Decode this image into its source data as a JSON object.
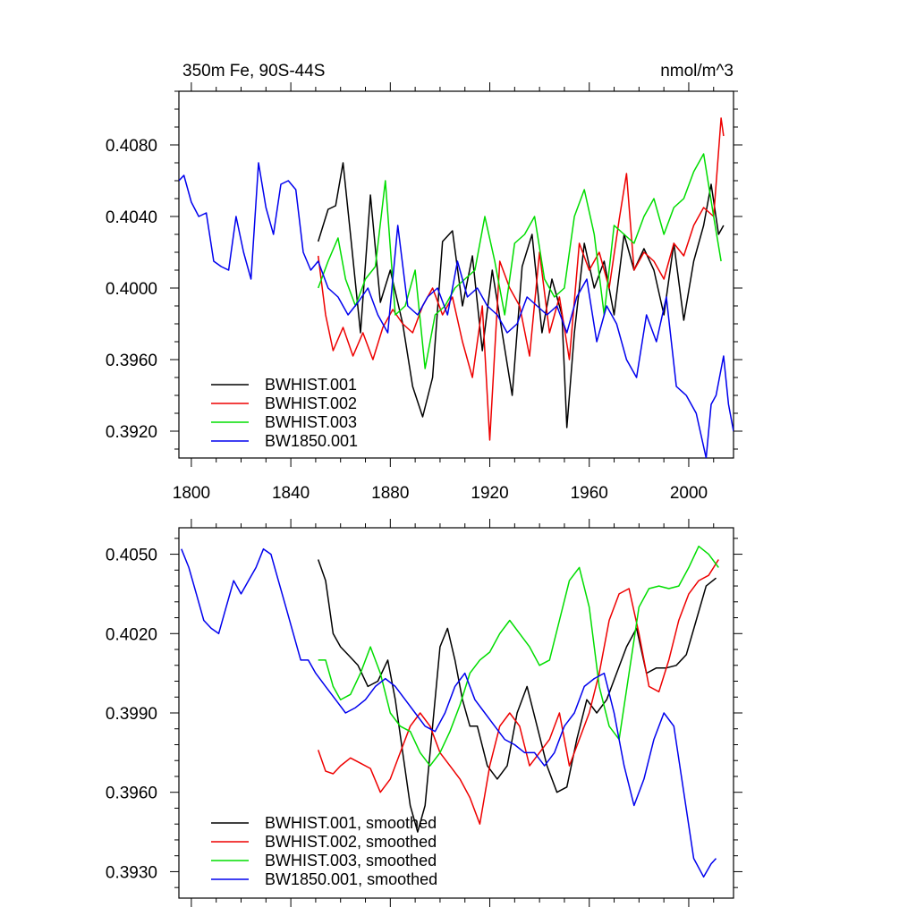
{
  "chart_data": [
    {
      "type": "line",
      "title_left": "350m Fe, 90S-44S",
      "title_right": "nmol/m^3",
      "xlim": [
        1795,
        2018
      ],
      "ylim": [
        0.3905,
        0.411
      ],
      "x_ticks": [
        1800,
        1840,
        1880,
        1920,
        1960,
        2000
      ],
      "x_tick_labels": [
        "1800",
        "1840",
        "1880",
        "1920",
        "1960",
        "2000"
      ],
      "y_ticks": [
        0.392,
        0.396,
        0.4,
        0.404,
        0.408
      ],
      "y_tick_labels": [
        "0.3920",
        "0.3960",
        "0.4000",
        "0.4040",
        "0.4080"
      ],
      "legend_position": "bottom-left",
      "series": [
        {
          "name": "BWHIST.001",
          "color": "#000000",
          "x": [
            1851,
            1855,
            1858,
            1861,
            1864,
            1868,
            1872,
            1876,
            1880,
            1885,
            1889,
            1893,
            1897,
            1901,
            1905,
            1909,
            1913,
            1917,
            1921,
            1925,
            1929,
            1933,
            1937,
            1941,
            1945,
            1949,
            1951,
            1954,
            1958,
            1962,
            1966,
            1970,
            1974,
            1978,
            1982,
            1986,
            1990,
            1994,
            1998,
            2002,
            2006,
            2009,
            2012,
            2014
          ],
          "y": [
            0.4026,
            0.4044,
            0.4046,
            0.407,
            0.403,
            0.3975,
            0.4052,
            0.3992,
            0.401,
            0.398,
            0.3945,
            0.3928,
            0.395,
            0.4026,
            0.4032,
            0.399,
            0.4018,
            0.3965,
            0.401,
            0.3975,
            0.394,
            0.4012,
            0.403,
            0.3975,
            0.4005,
            0.3985,
            0.3922,
            0.3975,
            0.4025,
            0.4,
            0.4015,
            0.3985,
            0.403,
            0.401,
            0.4022,
            0.401,
            0.3985,
            0.4025,
            0.3982,
            0.4015,
            0.4035,
            0.4058,
            0.403,
            0.4035
          ]
        },
        {
          "name": "BWHIST.002",
          "color": "#ee0000",
          "x": [
            1851,
            1854,
            1857,
            1861,
            1865,
            1869,
            1873,
            1877,
            1881,
            1885,
            1889,
            1893,
            1897,
            1901,
            1905,
            1909,
            1913,
            1917,
            1920,
            1924,
            1928,
            1932,
            1936,
            1940,
            1944,
            1948,
            1952,
            1956,
            1960,
            1964,
            1968,
            1972,
            1975,
            1978,
            1982,
            1986,
            1990,
            1994,
            1998,
            2002,
            2006,
            2010,
            2013,
            2014
          ],
          "y": [
            0.4018,
            0.3985,
            0.3965,
            0.3978,
            0.3962,
            0.3975,
            0.396,
            0.3978,
            0.3988,
            0.398,
            0.3975,
            0.399,
            0.4,
            0.3985,
            0.3995,
            0.397,
            0.395,
            0.399,
            0.3915,
            0.4015,
            0.4,
            0.399,
            0.3962,
            0.402,
            0.3975,
            0.3995,
            0.396,
            0.4025,
            0.401,
            0.402,
            0.4,
            0.4038,
            0.4064,
            0.401,
            0.402,
            0.4015,
            0.4005,
            0.4025,
            0.4018,
            0.4035,
            0.4045,
            0.404,
            0.4095,
            0.4085
          ]
        },
        {
          "name": "BWHIST.003",
          "color": "#00dd00",
          "x": [
            1851,
            1855,
            1859,
            1862,
            1866,
            1870,
            1874,
            1878,
            1882,
            1886,
            1890,
            1894,
            1898,
            1902,
            1906,
            1910,
            1914,
            1918,
            1922,
            1926,
            1930,
            1934,
            1938,
            1942,
            1946,
            1950,
            1954,
            1958,
            1962,
            1966,
            1970,
            1974,
            1978,
            1982,
            1986,
            1990,
            1994,
            1998,
            2002,
            2006,
            2010,
            2013
          ],
          "y": [
            0.4,
            0.4015,
            0.4028,
            0.4005,
            0.399,
            0.4005,
            0.4012,
            0.406,
            0.3985,
            0.399,
            0.401,
            0.3955,
            0.3985,
            0.399,
            0.4,
            0.4005,
            0.401,
            0.404,
            0.4015,
            0.3985,
            0.4025,
            0.403,
            0.404,
            0.4005,
            0.3995,
            0.4,
            0.404,
            0.4055,
            0.403,
            0.3985,
            0.4035,
            0.403,
            0.4025,
            0.404,
            0.405,
            0.403,
            0.4045,
            0.405,
            0.4065,
            0.4075,
            0.404,
            0.4015
          ]
        },
        {
          "name": "BW1850.001",
          "color": "#0000ee",
          "x": [
            1795,
            1797,
            1800,
            1803,
            1806,
            1809,
            1812,
            1815,
            1818,
            1821,
            1824,
            1827,
            1830,
            1833,
            1836,
            1839,
            1842,
            1845,
            1848,
            1851,
            1855,
            1859,
            1863,
            1867,
            1871,
            1875,
            1879,
            1883,
            1887,
            1891,
            1895,
            1899,
            1903,
            1907,
            1911,
            1915,
            1919,
            1923,
            1927,
            1931,
            1935,
            1939,
            1943,
            1947,
            1951,
            1955,
            1959,
            1963,
            1967,
            1971,
            1975,
            1979,
            1983,
            1987,
            1991,
            1995,
            1999,
            2003,
            2007,
            2009,
            2011,
            2014,
            2016,
            2018
          ],
          "y": [
            0.406,
            0.4063,
            0.4048,
            0.404,
            0.4042,
            0.4015,
            0.4012,
            0.401,
            0.404,
            0.402,
            0.4005,
            0.407,
            0.4045,
            0.403,
            0.4058,
            0.406,
            0.4055,
            0.402,
            0.401,
            0.4015,
            0.4,
            0.3995,
            0.3985,
            0.3992,
            0.4,
            0.3985,
            0.3975,
            0.4035,
            0.399,
            0.3985,
            0.3995,
            0.4,
            0.3985,
            0.4015,
            0.3995,
            0.4,
            0.399,
            0.3985,
            0.3975,
            0.398,
            0.3995,
            0.399,
            0.3985,
            0.399,
            0.3975,
            0.3995,
            0.4005,
            0.397,
            0.399,
            0.398,
            0.396,
            0.395,
            0.3985,
            0.397,
            0.3995,
            0.3945,
            0.394,
            0.393,
            0.3905,
            0.3935,
            0.394,
            0.3962,
            0.3935,
            0.392
          ]
        }
      ]
    },
    {
      "type": "line",
      "xlim": [
        1795,
        2018
      ],
      "ylim": [
        0.392,
        0.406
      ],
      "x_ticks": [
        1800,
        1840,
        1880,
        1920,
        1960,
        2000
      ],
      "y_ticks": [
        0.393,
        0.396,
        0.399,
        0.402,
        0.405
      ],
      "y_tick_labels": [
        "0.3930",
        "0.3960",
        "0.3990",
        "0.4020",
        "0.4050"
      ],
      "legend_position": "bottom-left",
      "series": [
        {
          "name": "BWHIST.001, smoothed",
          "color": "#000000",
          "x": [
            1851,
            1854,
            1857,
            1860,
            1863,
            1867,
            1871,
            1875,
            1879,
            1882,
            1885,
            1888,
            1891,
            1894,
            1897,
            1900,
            1903,
            1906,
            1909,
            1912,
            1915,
            1919,
            1923,
            1927,
            1931,
            1935,
            1939,
            1943,
            1947,
            1951,
            1955,
            1959,
            1963,
            1967,
            1971,
            1975,
            1979,
            1983,
            1987,
            1991,
            1995,
            1999,
            2003,
            2007,
            2011
          ],
          "y": [
            0.4048,
            0.404,
            0.402,
            0.4015,
            0.4012,
            0.4008,
            0.4,
            0.4002,
            0.401,
            0.3995,
            0.3975,
            0.3955,
            0.3945,
            0.3955,
            0.3985,
            0.4015,
            0.4022,
            0.401,
            0.3995,
            0.3985,
            0.3985,
            0.397,
            0.3965,
            0.397,
            0.399,
            0.4,
            0.3985,
            0.397,
            0.396,
            0.3962,
            0.398,
            0.3995,
            0.399,
            0.3995,
            0.4005,
            0.4015,
            0.4022,
            0.4005,
            0.4007,
            0.4007,
            0.4008,
            0.4012,
            0.4025,
            0.4038,
            0.4041
          ]
        },
        {
          "name": "BWHIST.002, smoothed",
          "color": "#ee0000",
          "x": [
            1851,
            1854,
            1857,
            1860,
            1864,
            1868,
            1872,
            1876,
            1880,
            1884,
            1888,
            1892,
            1896,
            1900,
            1904,
            1908,
            1912,
            1916,
            1920,
            1924,
            1928,
            1932,
            1936,
            1940,
            1944,
            1948,
            1952,
            1956,
            1960,
            1964,
            1968,
            1972,
            1976,
            1980,
            1984,
            1988,
            1992,
            1996,
            2000,
            2004,
            2008,
            2012
          ],
          "y": [
            0.3976,
            0.3968,
            0.3967,
            0.397,
            0.3973,
            0.3971,
            0.3969,
            0.396,
            0.3965,
            0.3975,
            0.3985,
            0.399,
            0.3985,
            0.3975,
            0.397,
            0.3965,
            0.3958,
            0.3948,
            0.397,
            0.3985,
            0.399,
            0.3985,
            0.397,
            0.3975,
            0.398,
            0.399,
            0.397,
            0.398,
            0.399,
            0.4005,
            0.4025,
            0.4035,
            0.4037,
            0.402,
            0.4,
            0.3998,
            0.401,
            0.4025,
            0.4035,
            0.404,
            0.4042,
            0.4048
          ]
        },
        {
          "name": "BWHIST.003, smoothed",
          "color": "#00dd00",
          "x": [
            1851,
            1854,
            1857,
            1860,
            1864,
            1868,
            1872,
            1876,
            1880,
            1884,
            1888,
            1892,
            1896,
            1900,
            1904,
            1908,
            1912,
            1916,
            1920,
            1924,
            1928,
            1932,
            1936,
            1940,
            1944,
            1948,
            1952,
            1956,
            1960,
            1964,
            1968,
            1972,
            1976,
            1980,
            1984,
            1988,
            1992,
            1996,
            2000,
            2004,
            2008,
            2012
          ],
          "y": [
            0.401,
            0.401,
            0.4,
            0.3995,
            0.3997,
            0.4005,
            0.4015,
            0.4005,
            0.399,
            0.3985,
            0.3983,
            0.3975,
            0.397,
            0.3975,
            0.3983,
            0.3993,
            0.4005,
            0.401,
            0.4013,
            0.402,
            0.4025,
            0.402,
            0.4015,
            0.4008,
            0.401,
            0.4025,
            0.404,
            0.4045,
            0.403,
            0.4,
            0.3985,
            0.398,
            0.4005,
            0.403,
            0.4037,
            0.4038,
            0.4037,
            0.4038,
            0.4045,
            0.4053,
            0.405,
            0.4045
          ]
        },
        {
          "name": "BW1850.001, smoothed",
          "color": "#0000ee",
          "x": [
            1796,
            1799,
            1802,
            1805,
            1808,
            1811,
            1814,
            1817,
            1820,
            1823,
            1826,
            1829,
            1832,
            1835,
            1838,
            1841,
            1844,
            1847,
            1850,
            1854,
            1858,
            1862,
            1866,
            1870,
            1874,
            1878,
            1882,
            1886,
            1890,
            1894,
            1898,
            1902,
            1906,
            1910,
            1914,
            1918,
            1922,
            1926,
            1930,
            1934,
            1938,
            1942,
            1946,
            1950,
            1954,
            1958,
            1962,
            1966,
            1970,
            1974,
            1978,
            1982,
            1986,
            1990,
            1994,
            1998,
            2002,
            2006,
            2009,
            2011
          ],
          "y": [
            0.4052,
            0.4045,
            0.4035,
            0.4025,
            0.4022,
            0.402,
            0.403,
            0.404,
            0.4035,
            0.404,
            0.4045,
            0.4052,
            0.405,
            0.404,
            0.403,
            0.402,
            0.401,
            0.401,
            0.4005,
            0.4,
            0.3995,
            0.399,
            0.3992,
            0.3995,
            0.4,
            0.4003,
            0.4,
            0.3995,
            0.399,
            0.3985,
            0.3983,
            0.399,
            0.4,
            0.4005,
            0.3995,
            0.399,
            0.3985,
            0.398,
            0.3978,
            0.3975,
            0.3975,
            0.397,
            0.3975,
            0.3985,
            0.399,
            0.4,
            0.4003,
            0.4005,
            0.399,
            0.397,
            0.3955,
            0.3965,
            0.398,
            0.399,
            0.3985,
            0.396,
            0.3935,
            0.3928,
            0.3933,
            0.3935
          ]
        }
      ]
    }
  ]
}
